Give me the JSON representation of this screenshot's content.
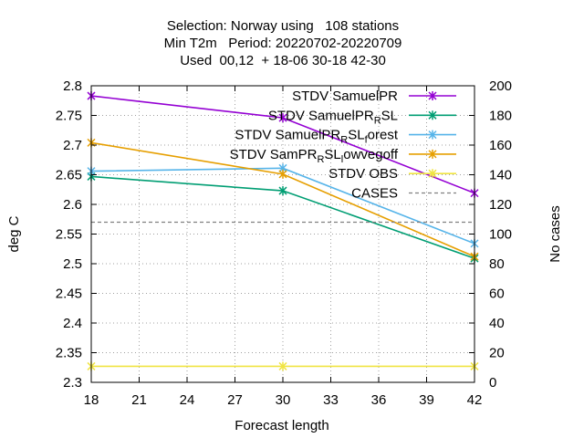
{
  "chart_data": {
    "type": "line",
    "title_lines": [
      "Selection: Norway using   108 stations",
      "Min T2m   Period: 20220702-20220709",
      "Used  00,12  + 18-06 30-18 42-30"
    ],
    "xlabel": "Forecast length",
    "ylabel": "deg C",
    "y2label": "No cases",
    "xlim": [
      18,
      42
    ],
    "ylim": [
      2.3,
      2.8
    ],
    "y2lim": [
      0,
      200
    ],
    "xticks": [
      18,
      21,
      24,
      27,
      30,
      33,
      36,
      39,
      42
    ],
    "yticks": [
      "2.3",
      "2.35",
      "2.4",
      "2.45",
      "2.5",
      "2.55",
      "2.6",
      "2.65",
      "2.7",
      "2.75",
      "2.8"
    ],
    "y2ticks": [
      0,
      20,
      40,
      60,
      80,
      100,
      120,
      140,
      160,
      180,
      200
    ],
    "grid": true,
    "legend_position": "top-right",
    "x": [
      18,
      30,
      42
    ],
    "series": [
      {
        "name": "STDV SamuelPR",
        "name_parts": [
          [
            "STDV SamuelPR",
            ""
          ]
        ],
        "color": "#9400d3",
        "axis": "y",
        "marker": "x",
        "values": [
          2.783,
          2.746,
          2.619
        ]
      },
      {
        "name": "STDV SamuelPR_RSL",
        "name_parts": [
          [
            "STDV SamuelPR",
            ""
          ],
          [
            "R",
            "sub"
          ],
          [
            "SL",
            ""
          ]
        ],
        "color": "#009e73",
        "axis": "y",
        "marker": "x",
        "values": [
          2.647,
          2.623,
          2.509
        ]
      },
      {
        "name": "STDV SamuelPR_RSL_forest",
        "name_parts": [
          [
            "STDV SamuelPR",
            ""
          ],
          [
            "R",
            "sub"
          ],
          [
            "SL",
            ""
          ],
          [
            "f",
            "sub"
          ],
          [
            "orest",
            ""
          ]
        ],
        "color": "#56b4e9",
        "axis": "y",
        "marker": "x",
        "values": [
          2.656,
          2.661,
          2.534
        ]
      },
      {
        "name": "STDV SamPR_RSL_lowvegoff",
        "name_parts": [
          [
            "STDV SamPR",
            ""
          ],
          [
            "R",
            "sub"
          ],
          [
            "SL",
            ""
          ],
          [
            "l",
            "sub"
          ],
          [
            "owvegoff",
            ""
          ]
        ],
        "color": "#e69f00",
        "axis": "y",
        "marker": "x",
        "values": [
          2.704,
          2.651,
          2.512
        ]
      },
      {
        "name": "STDV OBS",
        "name_parts": [
          [
            "STDV OBS",
            ""
          ]
        ],
        "color": "#f0e442",
        "axis": "y",
        "marker": "x",
        "values": [
          2.327,
          2.327,
          2.327
        ]
      },
      {
        "name": "CASES",
        "name_parts": [
          [
            "CASES",
            ""
          ]
        ],
        "color": "#808080",
        "axis": "y2",
        "marker": "none",
        "dashed": true,
        "values": [
          108,
          108,
          108
        ]
      }
    ]
  }
}
